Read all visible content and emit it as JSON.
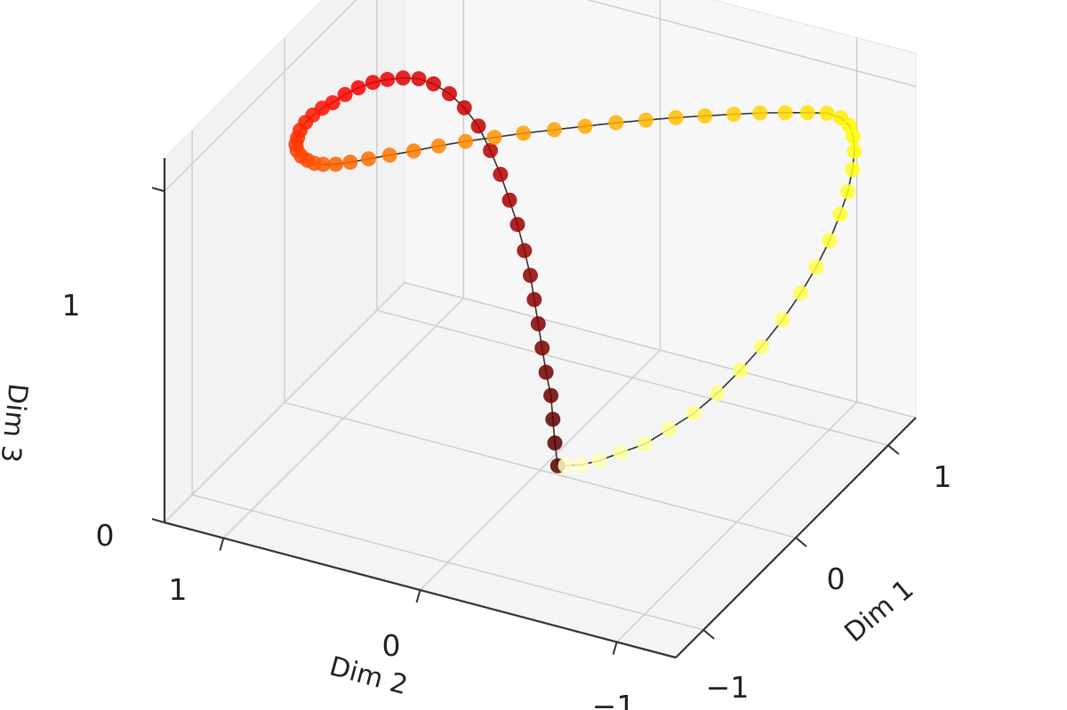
{
  "chart_data": {
    "type": "scatter",
    "projection": "3d",
    "colormap": "hot",
    "axes": {
      "x": {
        "label": "Dim 1",
        "ticks": [
          "−1",
          "0",
          "1"
        ],
        "range": [
          -1.3,
          1.3
        ]
      },
      "y": {
        "label": "Dim 2",
        "ticks": [
          "−1",
          "0",
          "1"
        ],
        "range": [
          -1.3,
          1.3
        ]
      },
      "z": {
        "label": "Dim 3",
        "ticks": [
          "0",
          "1"
        ],
        "range": [
          0,
          1.1
        ]
      }
    },
    "grid": true,
    "legend": "none",
    "series": [
      {
        "marker": "circle",
        "connected": true,
        "line_color": "#333333",
        "points": [
          {
            "x": 0.02,
            "y": -0.08,
            "z": 0.02
          },
          {
            "x": 0.01,
            "y": -0.07,
            "z": 0.09
          },
          {
            "x": 0.01,
            "y": -0.06,
            "z": 0.16
          },
          {
            "x": 0.01,
            "y": -0.05,
            "z": 0.23
          },
          {
            "x": 0.0,
            "y": -0.03,
            "z": 0.3
          },
          {
            "x": 0.0,
            "y": -0.01,
            "z": 0.37
          },
          {
            "x": 0.0,
            "y": 0.01,
            "z": 0.44
          },
          {
            "x": 0.0,
            "y": 0.03,
            "z": 0.51
          },
          {
            "x": 0.0,
            "y": 0.05,
            "z": 0.58
          },
          {
            "x": 0.0,
            "y": 0.08,
            "z": 0.65
          },
          {
            "x": 0.01,
            "y": 0.12,
            "z": 0.72
          },
          {
            "x": 0.03,
            "y": 0.17,
            "z": 0.78
          },
          {
            "x": 0.06,
            "y": 0.23,
            "z": 0.84
          },
          {
            "x": 0.1,
            "y": 0.3,
            "z": 0.89
          },
          {
            "x": 0.14,
            "y": 0.38,
            "z": 0.94
          },
          {
            "x": 0.18,
            "y": 0.47,
            "z": 0.97
          },
          {
            "x": 0.21,
            "y": 0.56,
            "z": 0.99
          },
          {
            "x": 0.23,
            "y": 0.65,
            "z": 1.0
          },
          {
            "x": 0.24,
            "y": 0.73,
            "z": 1.0
          },
          {
            "x": 0.24,
            "y": 0.81,
            "z": 0.99
          },
          {
            "x": 0.22,
            "y": 0.88,
            "z": 0.98
          },
          {
            "x": 0.19,
            "y": 0.94,
            "z": 0.97
          },
          {
            "x": 0.14,
            "y": 0.99,
            "z": 0.96
          },
          {
            "x": 0.08,
            "y": 1.03,
            "z": 0.95
          },
          {
            "x": 0.01,
            "y": 1.06,
            "z": 0.94
          },
          {
            "x": -0.06,
            "y": 1.08,
            "z": 0.94
          },
          {
            "x": -0.14,
            "y": 1.09,
            "z": 0.94
          },
          {
            "x": -0.22,
            "y": 1.09,
            "z": 0.94
          },
          {
            "x": -0.3,
            "y": 1.08,
            "z": 0.94
          },
          {
            "x": -0.37,
            "y": 1.06,
            "z": 0.94
          },
          {
            "x": -0.43,
            "y": 1.04,
            "z": 0.94
          },
          {
            "x": -0.48,
            "y": 1.01,
            "z": 0.94
          },
          {
            "x": -0.52,
            "y": 0.97,
            "z": 0.94
          },
          {
            "x": -0.54,
            "y": 0.93,
            "z": 0.94
          },
          {
            "x": -0.55,
            "y": 0.89,
            "z": 0.94
          },
          {
            "x": -0.54,
            "y": 0.85,
            "z": 0.94
          },
          {
            "x": -0.51,
            "y": 0.8,
            "z": 0.94
          },
          {
            "x": -0.46,
            "y": 0.75,
            "z": 0.94
          },
          {
            "x": -0.39,
            "y": 0.69,
            "z": 0.94
          },
          {
            "x": -0.31,
            "y": 0.62,
            "z": 0.94
          },
          {
            "x": -0.22,
            "y": 0.54,
            "z": 0.94
          },
          {
            "x": -0.12,
            "y": 0.46,
            "z": 0.94
          },
          {
            "x": -0.02,
            "y": 0.37,
            "z": 0.94
          },
          {
            "x": 0.08,
            "y": 0.27,
            "z": 0.94
          },
          {
            "x": 0.18,
            "y": 0.17,
            "z": 0.94
          },
          {
            "x": 0.28,
            "y": 0.06,
            "z": 0.94
          },
          {
            "x": 0.38,
            "y": -0.05,
            "z": 0.94
          },
          {
            "x": 0.48,
            "y": -0.16,
            "z": 0.94
          },
          {
            "x": 0.57,
            "y": -0.27,
            "z": 0.94
          },
          {
            "x": 0.66,
            "y": -0.38,
            "z": 0.94
          },
          {
            "x": 0.74,
            "y": -0.49,
            "z": 0.94
          },
          {
            "x": 0.82,
            "y": -0.6,
            "z": 0.94
          },
          {
            "x": 0.89,
            "y": -0.7,
            "z": 0.94
          },
          {
            "x": 0.95,
            "y": -0.8,
            "z": 0.94
          },
          {
            "x": 1.0,
            "y": -0.89,
            "z": 0.94
          },
          {
            "x": 1.04,
            "y": -0.97,
            "z": 0.94
          },
          {
            "x": 1.06,
            "y": -1.03,
            "z": 0.93
          },
          {
            "x": 1.07,
            "y": -1.07,
            "z": 0.91
          },
          {
            "x": 1.07,
            "y": -1.09,
            "z": 0.88
          },
          {
            "x": 1.06,
            "y": -1.1,
            "z": 0.84
          },
          {
            "x": 1.04,
            "y": -1.1,
            "z": 0.79
          },
          {
            "x": 1.01,
            "y": -1.09,
            "z": 0.73
          },
          {
            "x": 0.97,
            "y": -1.07,
            "z": 0.67
          },
          {
            "x": 0.92,
            "y": -1.04,
            "z": 0.6
          },
          {
            "x": 0.86,
            "y": -1.0,
            "z": 0.53
          },
          {
            "x": 0.8,
            "y": -0.95,
            "z": 0.46
          },
          {
            "x": 0.73,
            "y": -0.89,
            "z": 0.39
          },
          {
            "x": 0.65,
            "y": -0.82,
            "z": 0.32
          },
          {
            "x": 0.57,
            "y": -0.75,
            "z": 0.26
          },
          {
            "x": 0.49,
            "y": -0.67,
            "z": 0.2
          },
          {
            "x": 0.41,
            "y": -0.59,
            "z": 0.15
          },
          {
            "x": 0.33,
            "y": -0.5,
            "z": 0.11
          },
          {
            "x": 0.26,
            "y": -0.41,
            "z": 0.07
          },
          {
            "x": 0.19,
            "y": -0.32,
            "z": 0.05
          },
          {
            "x": 0.13,
            "y": -0.24,
            "z": 0.03
          },
          {
            "x": 0.08,
            "y": -0.17,
            "z": 0.02
          },
          {
            "x": 0.04,
            "y": -0.11,
            "z": 0.02
          }
        ]
      }
    ]
  }
}
